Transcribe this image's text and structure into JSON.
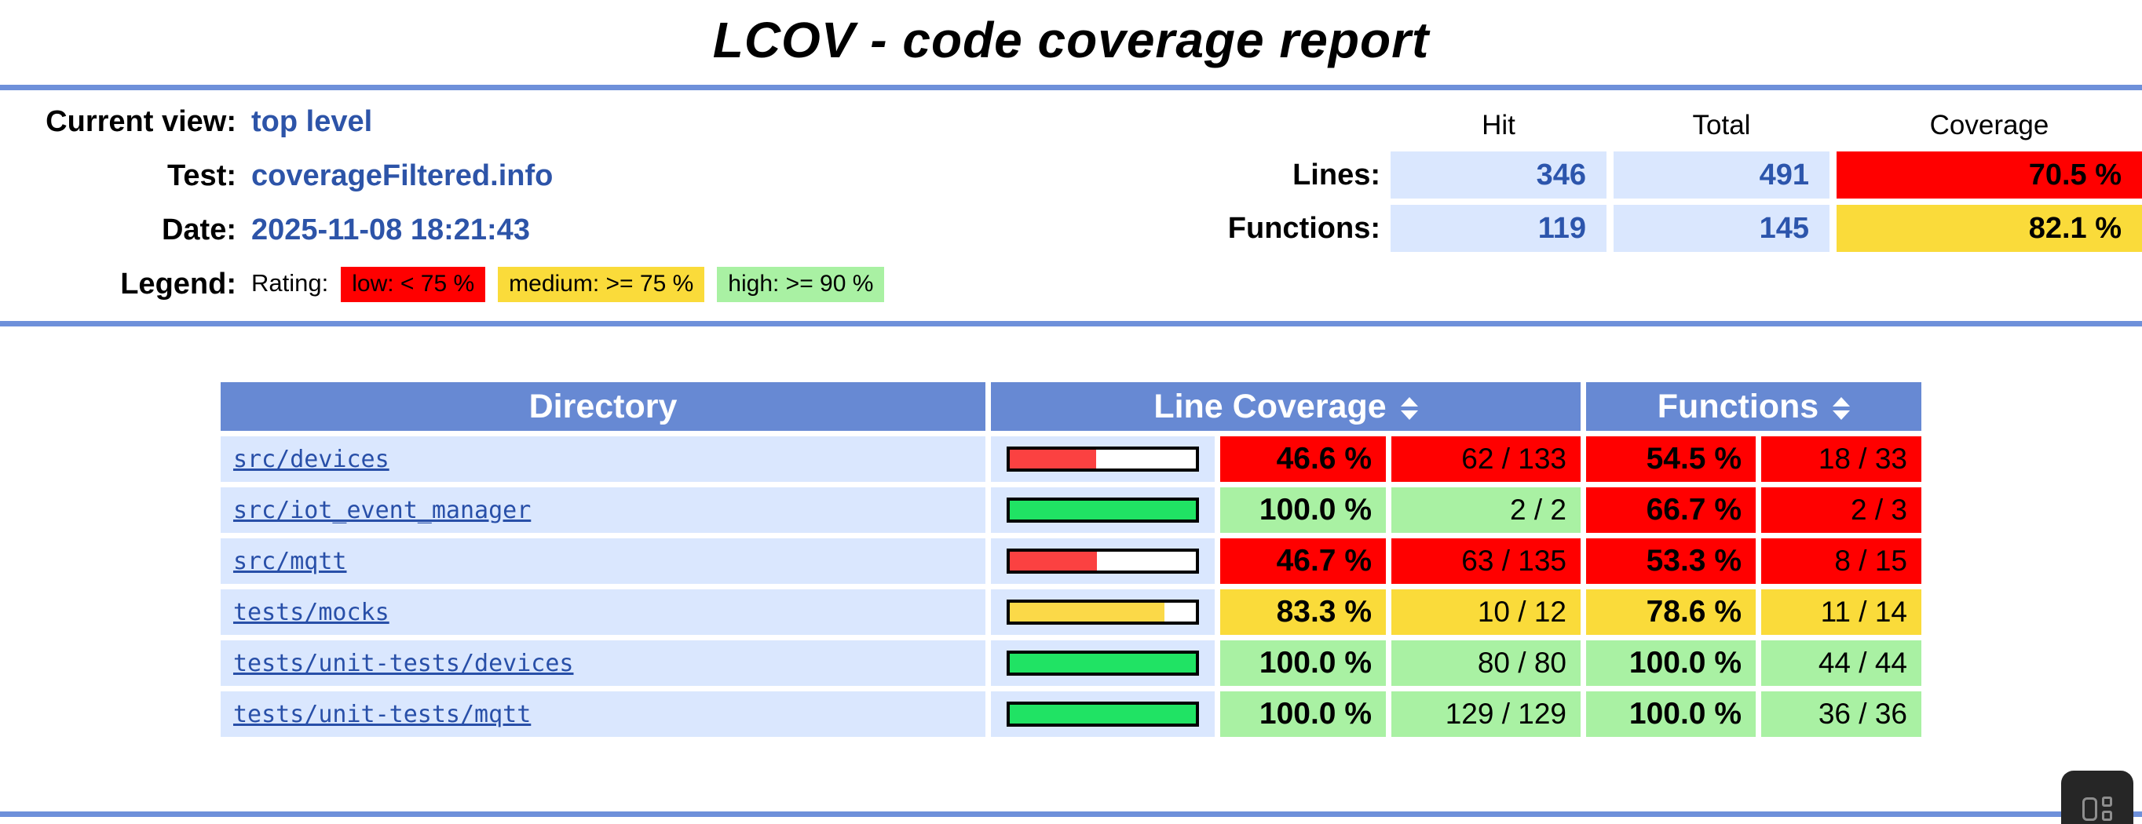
{
  "page": {
    "title": "LCOV - code coverage report"
  },
  "colors": {
    "rule_blue": "#6E90DA",
    "table_header_blue": "#6789D3",
    "row_blue": "#DAE7FE",
    "link_blue": "#284FA8",
    "value_blue": "#2C55AC",
    "low": "#FF0000",
    "medium": "#FADB3A",
    "high": "#A9F1A3",
    "bar_low": "#FB4141",
    "bar_med": "#FBD948",
    "bar_high": "#20E364"
  },
  "header": {
    "rows": [
      {
        "label": "Current view:",
        "value": "top level"
      },
      {
        "label": "Test:",
        "value": "coverageFiltered.info"
      },
      {
        "label": "Date:",
        "value": "2025-11-08 18:21:43"
      }
    ],
    "legend": {
      "label": "Legend:",
      "rating_label": "Rating:",
      "items": [
        {
          "text": "low: < 75 %",
          "rating": "low"
        },
        {
          "text": "medium: >= 75 %",
          "rating": "med"
        },
        {
          "text": "high: >= 90 %",
          "rating": "high"
        }
      ]
    },
    "summary": {
      "col_headers": [
        "Hit",
        "Total",
        "Coverage"
      ],
      "rows": [
        {
          "label": "Lines:",
          "hit": "346",
          "total": "491",
          "coverage": "70.5 %",
          "rating": "low"
        },
        {
          "label": "Functions:",
          "hit": "119",
          "total": "145",
          "coverage": "82.1 %",
          "rating": "med"
        }
      ]
    }
  },
  "table": {
    "headers": {
      "directory": "Directory",
      "line_coverage": "Line Coverage",
      "functions": "Functions"
    },
    "rows": [
      {
        "dir": "src/devices",
        "bar": {
          "percent": 46.6,
          "rating": "low"
        },
        "cells": [
          "46.6 %",
          "62 / 133",
          "54.5 %",
          "18 / 33"
        ],
        "ratings": [
          "low",
          "low",
          "low",
          "low"
        ]
      },
      {
        "dir": "src/iot_event_manager",
        "bar": {
          "percent": 100,
          "rating": "high"
        },
        "cells": [
          "100.0 %",
          "2 / 2",
          "66.7 %",
          "2 / 3"
        ],
        "ratings": [
          "high",
          "high",
          "low",
          "low"
        ]
      },
      {
        "dir": "src/mqtt",
        "bar": {
          "percent": 46.7,
          "rating": "low"
        },
        "cells": [
          "46.7 %",
          "63 / 135",
          "53.3 %",
          "8 / 15"
        ],
        "ratings": [
          "low",
          "low",
          "low",
          "low"
        ]
      },
      {
        "dir": "tests/mocks",
        "bar": {
          "percent": 83.3,
          "rating": "med"
        },
        "cells": [
          "83.3 %",
          "10 / 12",
          "78.6 %",
          "11 / 14"
        ],
        "ratings": [
          "med",
          "med",
          "med",
          "med"
        ]
      },
      {
        "dir": "tests/unit-tests/devices",
        "bar": {
          "percent": 100,
          "rating": "high"
        },
        "cells": [
          "100.0 %",
          "80 / 80",
          "100.0 %",
          "44 / 44"
        ],
        "ratings": [
          "high",
          "high",
          "high",
          "high"
        ]
      },
      {
        "dir": "tests/unit-tests/mqtt",
        "bar": {
          "percent": 100,
          "rating": "high"
        },
        "cells": [
          "100.0 %",
          "129 / 129",
          "100.0 %",
          "36 / 36"
        ],
        "ratings": [
          "high",
          "high",
          "high",
          "high"
        ]
      }
    ]
  },
  "overlay": {
    "widget_icon": "grid-widget-icon"
  }
}
